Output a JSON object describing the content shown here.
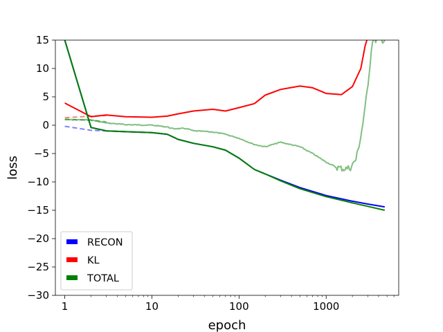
{
  "chart_data": {
    "type": "line",
    "xscale": "log",
    "xlabel": "epoch",
    "ylabel": "loss",
    "xlim": [
      0.78,
      6800
    ],
    "ylim": [
      -30,
      15
    ],
    "xticks": [
      {
        "value": 1,
        "label": "1"
      },
      {
        "value": 10,
        "label": "10"
      },
      {
        "value": 100,
        "label": "100"
      },
      {
        "value": 1000,
        "label": "1000"
      }
    ],
    "yticks": [
      {
        "value": 15,
        "label": "15"
      },
      {
        "value": 10,
        "label": "10"
      },
      {
        "value": 5,
        "label": "5"
      },
      {
        "value": 0,
        "label": "0"
      },
      {
        "value": -5,
        "label": "−5"
      },
      {
        "value": -10,
        "label": "−10"
      },
      {
        "value": -15,
        "label": "−15"
      },
      {
        "value": -20,
        "label": "−20"
      },
      {
        "value": -25,
        "label": "−25"
      },
      {
        "value": -30,
        "label": "−30"
      }
    ],
    "legend_position": "lower-left",
    "grid": false,
    "series": [
      {
        "name": "RECON",
        "color": "#0000ff",
        "style": "solid",
        "x": [
          1,
          2,
          3,
          5,
          10,
          15,
          20,
          30,
          50,
          70,
          100,
          150,
          200,
          300,
          500,
          1000,
          2000,
          3000,
          4700
        ],
        "y": [
          15,
          -0.4,
          -1.0,
          -1.15,
          -1.3,
          -1.6,
          -2.5,
          -3.2,
          -3.8,
          -4.4,
          -5.8,
          -7.8,
          -8.6,
          -9.7,
          -11.0,
          -12.4,
          -13.4,
          -13.9,
          -14.4
        ]
      },
      {
        "name": "KL",
        "color": "#ff0000",
        "style": "solid",
        "x": [
          1,
          2,
          3,
          5,
          10,
          15,
          20,
          30,
          50,
          70,
          100,
          150,
          200,
          300,
          500,
          700,
          1000,
          1500,
          2000,
          2500,
          2800,
          3000
        ],
        "y": [
          3.9,
          1.5,
          1.8,
          1.5,
          1.4,
          1.6,
          2.0,
          2.5,
          2.8,
          2.5,
          3.1,
          3.8,
          5.3,
          6.3,
          6.9,
          6.6,
          5.6,
          5.4,
          6.8,
          10.0,
          14.0,
          15.5
        ]
      },
      {
        "name": "TOTAL",
        "color": "#008000",
        "style": "solid",
        "x": [
          1,
          2,
          3,
          5,
          10,
          15,
          20,
          30,
          50,
          70,
          100,
          150,
          200,
          300,
          500,
          1000,
          2000,
          3000,
          4700
        ],
        "y": [
          15,
          -0.4,
          -1.0,
          -1.15,
          -1.3,
          -1.6,
          -2.5,
          -3.2,
          -3.8,
          -4.4,
          -5.8,
          -7.8,
          -8.6,
          -9.8,
          -11.2,
          -12.6,
          -13.7,
          -14.3,
          -15.0
        ]
      },
      {
        "name": "TOTAL",
        "color": "#008000",
        "style": "faded",
        "opacity": 0.5,
        "x": [
          1,
          2,
          3,
          5,
          10,
          15,
          17,
          25,
          30,
          40,
          50,
          70,
          100,
          150,
          200,
          300,
          500,
          700,
          1000,
          1300,
          1600,
          1900,
          2200,
          2500,
          2800,
          3100,
          3400,
          3800,
          4200,
          4700
        ],
        "y": [
          1.0,
          0.9,
          0.4,
          0.1,
          0.0,
          -0.3,
          -0.6,
          -0.6,
          -1.0,
          -1.1,
          -1.2,
          -1.6,
          -2.3,
          -3.4,
          -3.8,
          -3.0,
          -3.8,
          -5.0,
          -6.5,
          -7.4,
          -7.7,
          -7.5,
          -6.0,
          -2.0,
          3.0,
          9.0,
          15.0,
          15.0,
          15.0,
          15.0
        ]
      },
      {
        "name": "RECON",
        "color": "#0000ff",
        "style": "dashed",
        "opacity": 0.5,
        "x": [
          1,
          2,
          3
        ],
        "y": [
          -0.2,
          -0.9,
          -1.0
        ]
      },
      {
        "name": "KL",
        "color": "#ff0000",
        "style": "dashed",
        "opacity": 0.5,
        "x": [
          1,
          2,
          3
        ],
        "y": [
          1.3,
          1.6,
          1.7
        ]
      },
      {
        "name": "TOTAL",
        "color": "#008000",
        "style": "dashed",
        "opacity": 0.5,
        "x": [
          1,
          2,
          3
        ],
        "y": [
          1.0,
          0.9,
          0.6
        ]
      }
    ],
    "legend": [
      {
        "label": "RECON",
        "color": "#0000ff"
      },
      {
        "label": "KL",
        "color": "#ff0000"
      },
      {
        "label": "TOTAL",
        "color": "#008000"
      }
    ]
  }
}
